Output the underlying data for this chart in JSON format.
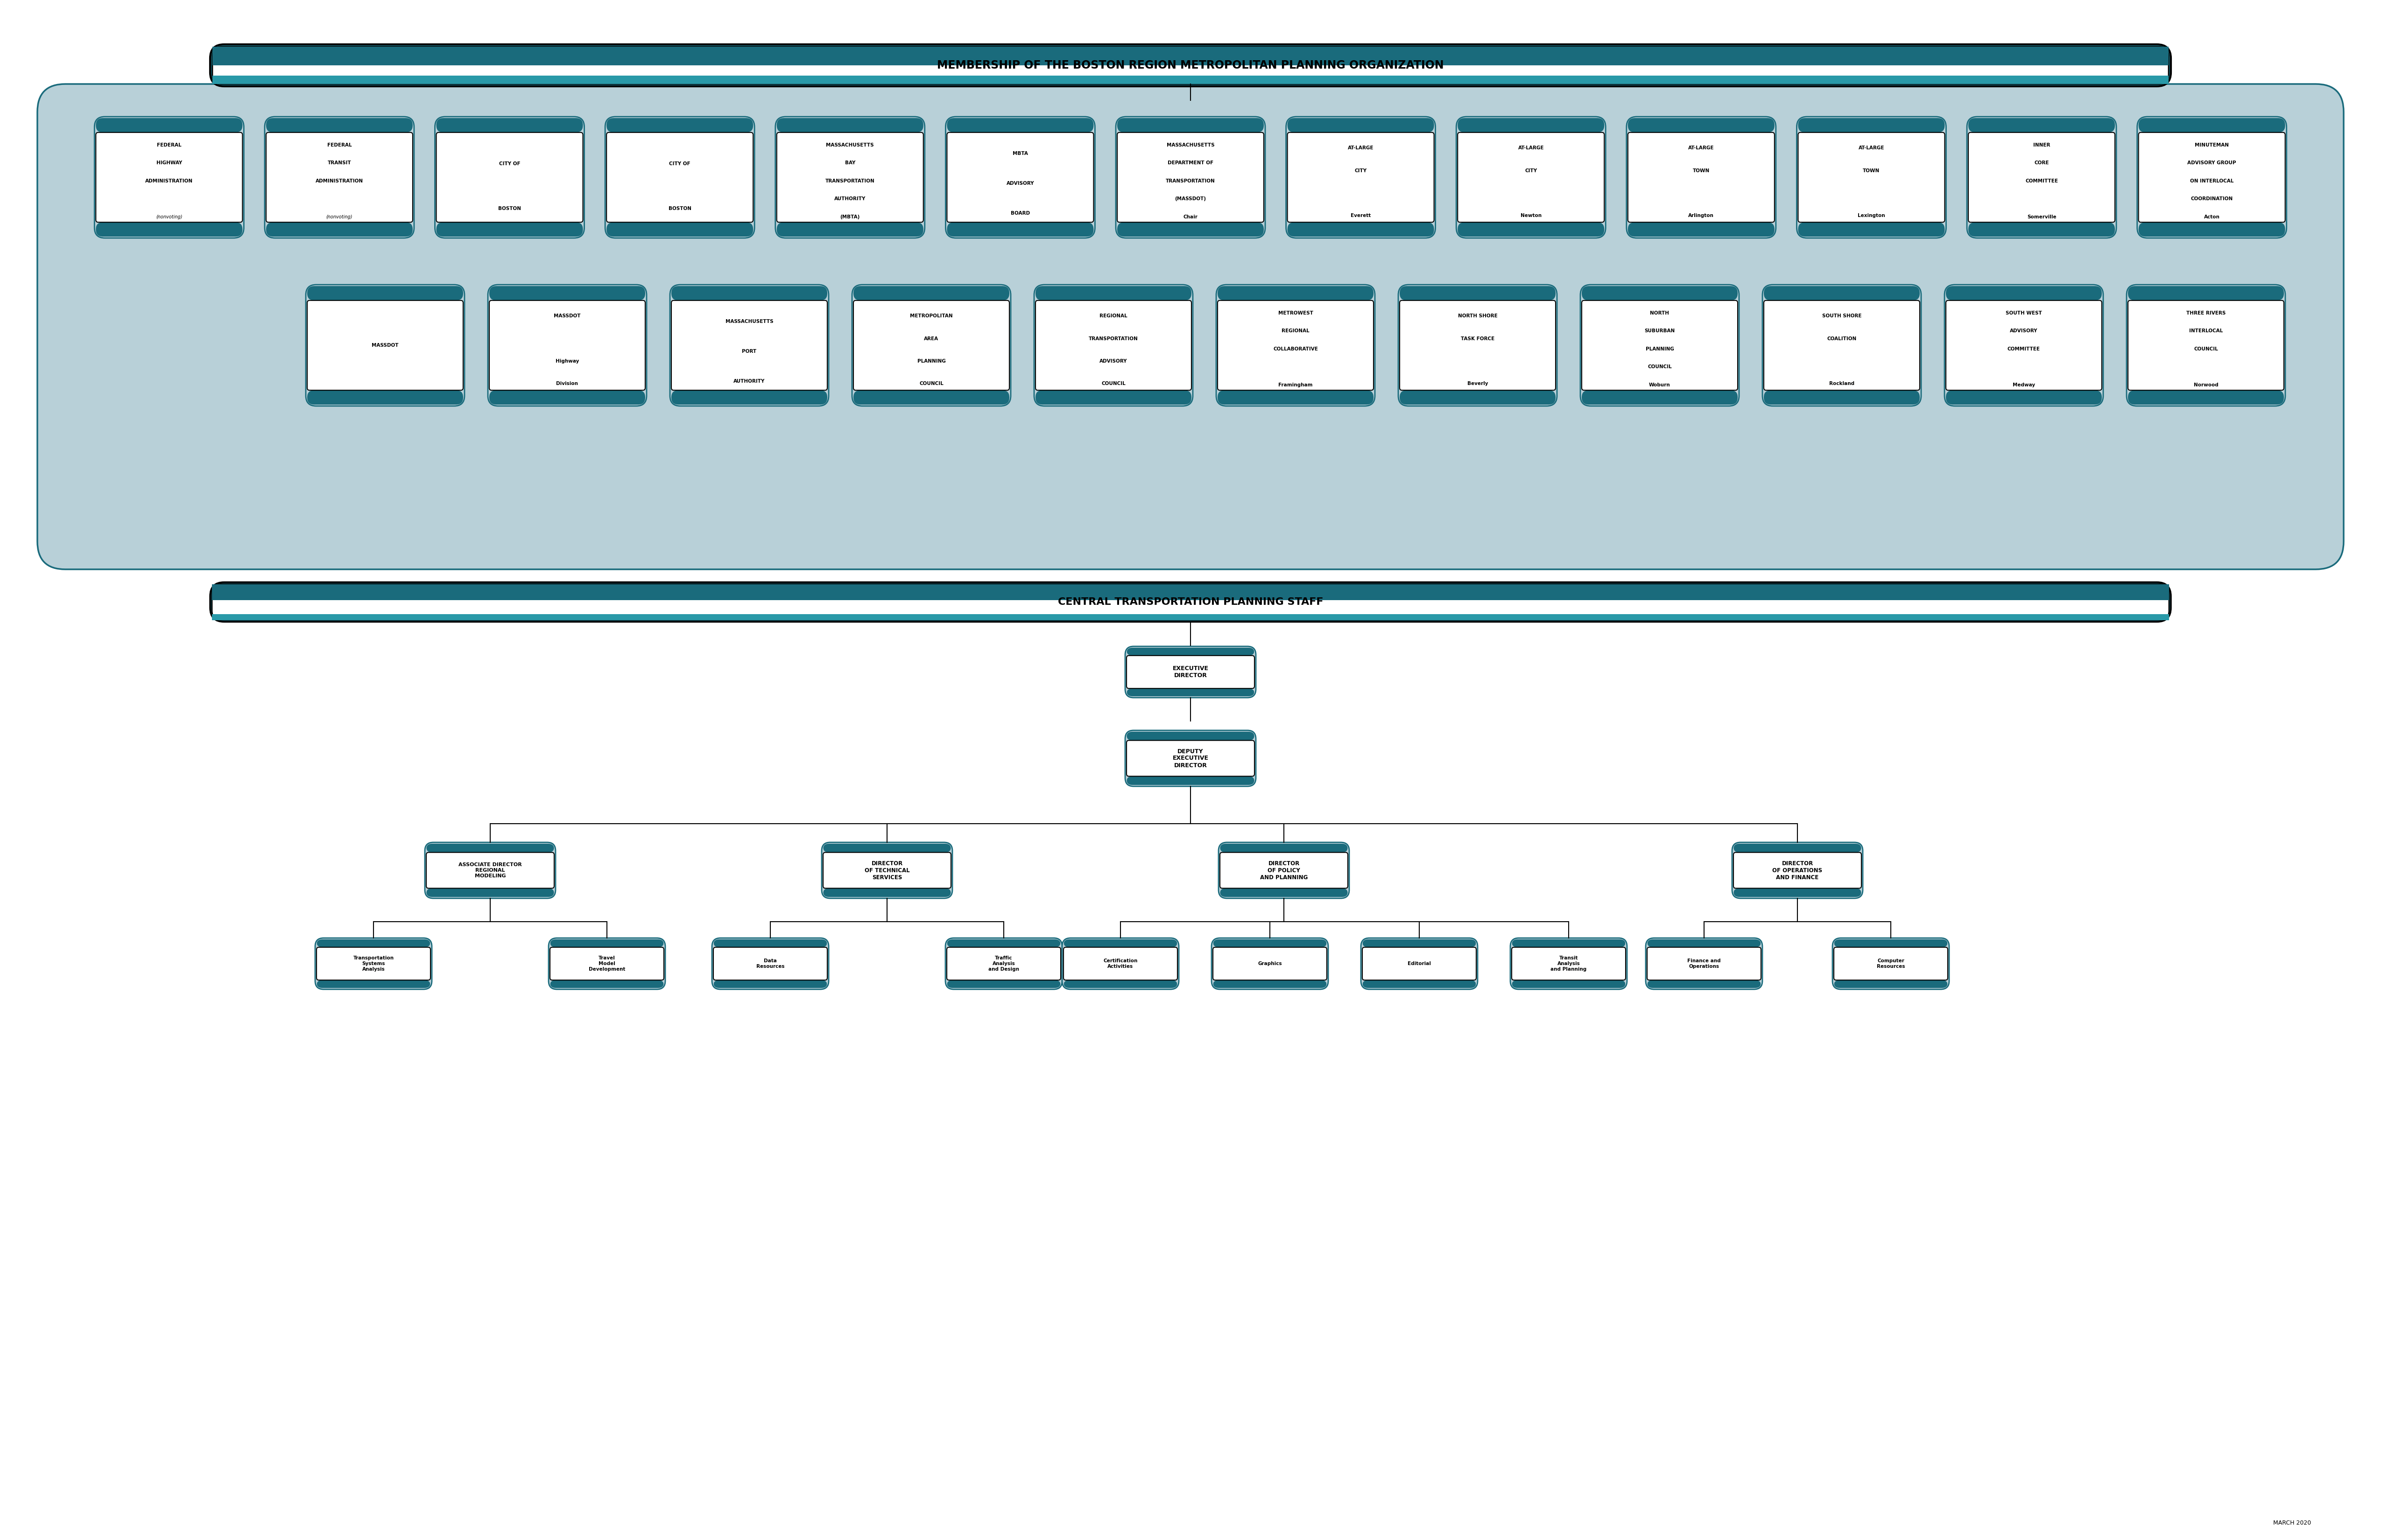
{
  "title": "MEMBERSHIP OF THE BOSTON REGION METROPOLITAN PLANNING ORGANIZATION",
  "ctps_title": "CENTRAL TRANSPORTATION PLANNING STAFF",
  "date_label": "MARCH 2020",
  "colors": {
    "dark_teal": "#1a6b7c",
    "medium_teal": "#2999a8",
    "light_blue": "#a8c4cf",
    "light_blue2": "#b8d0d8",
    "white": "#ffffff",
    "black": "#000000",
    "box_bg": "#ffffff",
    "box_border": "#1a6b7c",
    "staff_box_bg": "#d0e8ee",
    "header_dark": "#1a6b7c",
    "header_light": "#2999a8"
  },
  "membership_row1": [
    {
      "lines": [
        "FEDERAL",
        "HIGHWAY",
        "ADMINISTRATION",
        "",
        "(nonvoting)"
      ],
      "italic_last": true
    },
    {
      "lines": [
        "FEDERAL",
        "TRANSIT",
        "ADMINISTRATION",
        "",
        "(nonvoting)"
      ],
      "italic_last": true
    },
    {
      "lines": [
        "CITY OF",
        "BOSTON"
      ],
      "italic_last": false
    },
    {
      "lines": [
        "CITY OF",
        "BOSTON"
      ],
      "italic_last": false
    },
    {
      "lines": [
        "MASSACHUSETTS",
        "BAY",
        "TRANSPORTATION",
        "AUTHORITY",
        "(MBTA)"
      ],
      "italic_last": false
    },
    {
      "lines": [
        "MBTA",
        "ADVISORY",
        "BOARD"
      ],
      "italic_last": false
    },
    {
      "lines": [
        "MASSACHUSETTS",
        "DEPARTMENT OF",
        "TRANSPORTATION",
        "(MASSDOT)",
        "Chair"
      ],
      "italic_last": false
    },
    {
      "lines": [
        "AT-LARGE",
        "CITY",
        "",
        "Everett"
      ],
      "italic_last": false
    },
    {
      "lines": [
        "AT-LARGE",
        "CITY",
        "",
        "Newton"
      ],
      "italic_last": false
    },
    {
      "lines": [
        "AT-LARGE",
        "TOWN",
        "",
        "Arlington"
      ],
      "italic_last": false
    },
    {
      "lines": [
        "AT-LARGE",
        "TOWN",
        "",
        "Lexington"
      ],
      "italic_last": false
    },
    {
      "lines": [
        "INNER",
        "CORE",
        "COMMITTEE",
        "",
        "Somerville"
      ],
      "italic_last": false
    },
    {
      "lines": [
        "MINUTEMAN",
        "ADVISORY GROUP",
        "ON INTERLOCAL",
        "COORDINATION",
        "Acton"
      ],
      "italic_last": false
    }
  ],
  "membership_row2": [
    {
      "lines": [
        "MASSDOT"
      ],
      "italic_last": false
    },
    {
      "lines": [
        "MASSDOT",
        "",
        "Highway",
        "Division"
      ],
      "italic_last": false
    },
    {
      "lines": [
        "MASSACHUSETTS",
        "PORT",
        "AUTHORITY"
      ],
      "italic_last": false
    },
    {
      "lines": [
        "METROPOLITAN",
        "AREA",
        "PLANNING",
        "COUNCIL"
      ],
      "italic_last": false
    },
    {
      "lines": [
        "REGIONAL",
        "TRANSPORTATION",
        "ADVISORY",
        "COUNCIL"
      ],
      "italic_last": false
    },
    {
      "lines": [
        "METROWEST",
        "REGIONAL",
        "COLLABORATIVE",
        "",
        "Framingham"
      ],
      "italic_last": false
    },
    {
      "lines": [
        "NORTH SHORE",
        "TASK FORCE",
        "",
        "Beverly"
      ],
      "italic_last": false
    },
    {
      "lines": [
        "NORTH",
        "SUBURBAN",
        "PLANNING",
        "COUNCIL",
        "Woburn"
      ],
      "italic_last": false
    },
    {
      "lines": [
        "SOUTH SHORE",
        "COALITION",
        "",
        "Rockland"
      ],
      "italic_last": false
    },
    {
      "lines": [
        "SOUTH WEST",
        "ADVISORY",
        "COMMITTEE",
        "",
        "Medway"
      ],
      "italic_last": false
    },
    {
      "lines": [
        "THREE RIVERS",
        "INTERLOCAL",
        "COUNCIL",
        "",
        "Norwood"
      ],
      "italic_last": false
    }
  ],
  "staff_tree": {
    "exec_director": "EXECUTIVE\nDIRECTOR",
    "deputy": "DEPUTY\nEXECUTIVE\nDIRECTOR",
    "level3": [
      "ASSOCIATE DIRECTOR\nREGIONAL\nMODELING",
      "DIRECTOR\nOF TECHNICAL\nSERVICES",
      "DIRECTOR\nOF POLICY\nAND PLANNING",
      "DIRECTOR\nOF OPERATIONS\nAND FINANCE"
    ],
    "level4": {
      "0": [
        "Transportation\nSystems\nAnalysis",
        "Travel\nModel\nDevelopment"
      ],
      "1": [
        "Data\nResources",
        "Traffic\nAnalysis\nand Design"
      ],
      "2": [
        "Certification\nActivities",
        "Graphics",
        "Editorial",
        "Transit\nAnalysis\nand Planning"
      ],
      "3": [
        "Finance and\nOperations",
        "Computer\nResources"
      ]
    }
  }
}
